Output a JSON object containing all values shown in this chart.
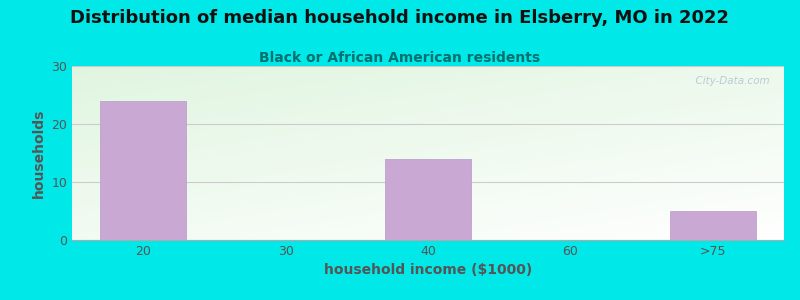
{
  "title": "Distribution of median household income in Elsberry, MO in 2022",
  "subtitle": "Black or African American residents",
  "xlabel": "household income ($1000)",
  "ylabel": "households",
  "categories": [
    "20",
    "30",
    "40",
    "60",
    ">75"
  ],
  "values": [
    24,
    0,
    14,
    0,
    5
  ],
  "bar_color": "#c9a8d4",
  "bar_edge_color": "#b898c8",
  "background_color": "#00e8e8",
  "title_color": "#111111",
  "subtitle_color": "#007070",
  "axis_label_color": "#555555",
  "tick_color": "#555555",
  "grid_color": "#cccccc",
  "ylim": [
    0,
    30
  ],
  "yticks": [
    0,
    10,
    20,
    30
  ],
  "title_fontsize": 13,
  "subtitle_fontsize": 10,
  "label_fontsize": 10,
  "tick_fontsize": 9,
  "watermark": "  City-Data.com",
  "plot_bg_green": [
    0.878,
    0.961,
    0.878
  ],
  "plot_bg_white": [
    1.0,
    1.0,
    1.0
  ]
}
